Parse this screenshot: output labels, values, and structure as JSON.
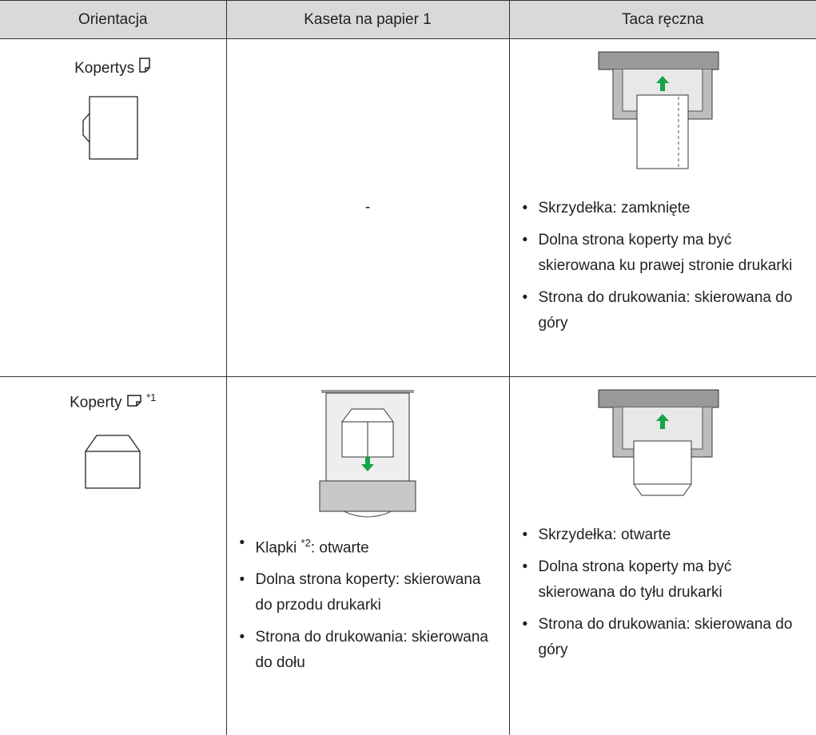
{
  "table": {
    "headers": [
      "Orientacja",
      "Kaseta na papier 1",
      "Taca ręczna"
    ],
    "rows": [
      {
        "orientation": "Kopertys",
        "tray1": "-",
        "bypass": [
          "Skrzydełka: zamknięte",
          "Dolna strona koperty ma być skierowana ku prawej stronie drukarki",
          "Strona do drukowania: skierowana do góry"
        ]
      },
      {
        "orientation": "Koperty",
        "orientation_note": "*1",
        "tray1": [
          {
            "text": "Klapki",
            "note": "*2",
            "rest": ": otwarte"
          },
          "Dolna strona koperty: skierowana do przodu drukarki",
          "Strona do drukowania: skierowana do dołu"
        ],
        "bypass": [
          "Skrzydełka: otwarte",
          "Dolna strona koperty ma być skierowana do tyłu drukarki",
          "Strona do drukowania: skierowana do góry"
        ]
      }
    ]
  }
}
